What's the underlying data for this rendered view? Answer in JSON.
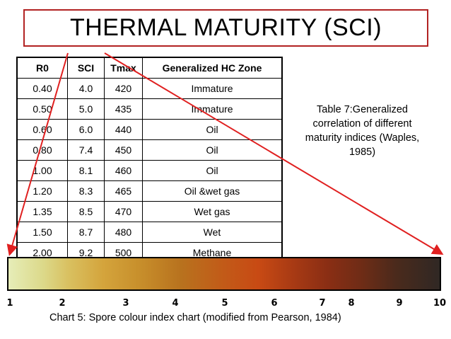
{
  "title": "THERMAL MATURITY (SCI)",
  "table": {
    "headers": [
      "R0",
      "SCI",
      "Tmax",
      "Generalized HC Zone"
    ],
    "rows": [
      [
        "0.40",
        "4.0",
        "420",
        "Immature"
      ],
      [
        "0.50",
        "5.0",
        "435",
        "Immature"
      ],
      [
        "0.60",
        "6.0",
        "440",
        "Oil"
      ],
      [
        "0.80",
        "7.4",
        "450",
        "Oil"
      ],
      [
        "1.00",
        "8.1",
        "460",
        "Oil"
      ],
      [
        "1.20",
        "8.3",
        "465",
        "Oil &wet gas"
      ],
      [
        "1.35",
        "8.5",
        "470",
        "Wet gas"
      ],
      [
        "1.50",
        "8.7",
        "480",
        "Wet"
      ],
      [
        "2.00",
        "9.2",
        "500",
        "Methane"
      ]
    ]
  },
  "table_caption": "Table 7:Generalized correlation of different maturity indices (Waples, 1985)",
  "scale_numbers": [
    "1",
    "2",
    "3",
    "4",
    "5",
    "6",
    "7",
    "8",
    "9",
    "10"
  ],
  "chart_caption": "Chart 5: Spore colour index chart (modified from Pearson, 1984)",
  "colors": {
    "title_border": "#b22222",
    "arrow": "#e02020"
  }
}
